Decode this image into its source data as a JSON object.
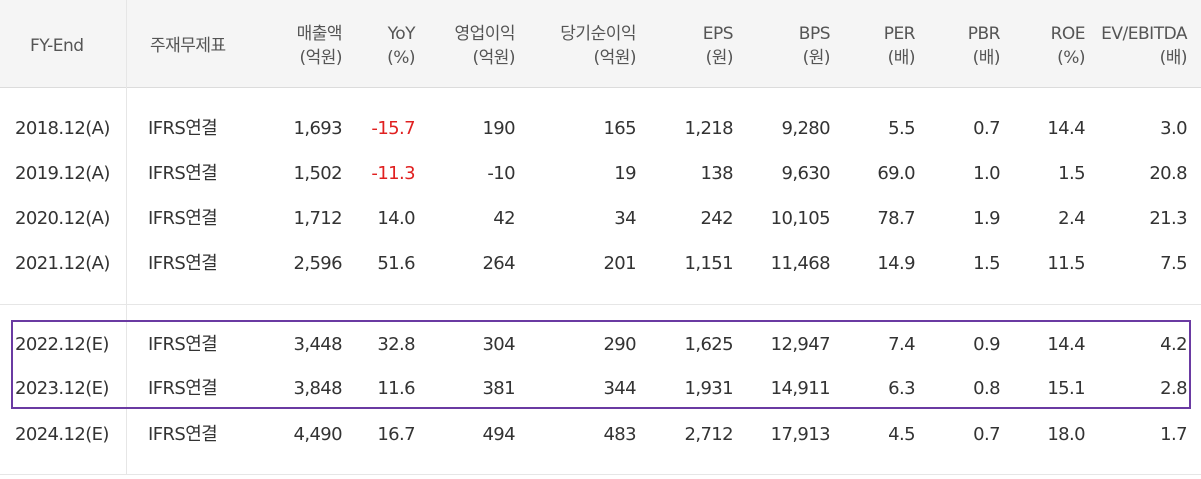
{
  "headers": [
    {
      "label": "FY-End",
      "sub": ""
    },
    {
      "label": "주재무제표",
      "sub": ""
    },
    {
      "label": "매출액",
      "sub": "(억원)"
    },
    {
      "label": "YoY",
      "sub": "(%)"
    },
    {
      "label": "영업이익",
      "sub": "(억원)"
    },
    {
      "label": "당기순이익",
      "sub": "(억원)"
    },
    {
      "label": "EPS",
      "sub": "(원)"
    },
    {
      "label": "BPS",
      "sub": "(원)"
    },
    {
      "label": "PER",
      "sub": "(배)"
    },
    {
      "label": "PBR",
      "sub": "(배)"
    },
    {
      "label": "ROE",
      "sub": "(%)"
    },
    {
      "label": "EV/EBITDA",
      "sub": "(배)"
    }
  ],
  "rows": [
    [
      "2018.12(A)",
      "IFRS연결",
      "1,693",
      "-15.7",
      "190",
      "165",
      "1,218",
      "9,280",
      "5.5",
      "0.7",
      "14.4",
      "3.0"
    ],
    [
      "2019.12(A)",
      "IFRS연결",
      "1,502",
      "-11.3",
      "-10",
      "19",
      "138",
      "9,630",
      "69.0",
      "1.0",
      "1.5",
      "20.8"
    ],
    [
      "2020.12(A)",
      "IFRS연결",
      "1,712",
      "14.0",
      "42",
      "34",
      "242",
      "10,105",
      "78.7",
      "1.9",
      "2.4",
      "21.3"
    ],
    [
      "2021.12(A)",
      "IFRS연결",
      "2,596",
      "51.6",
      "264",
      "201",
      "1,151",
      "11,468",
      "14.9",
      "1.5",
      "11.5",
      "7.5"
    ],
    [
      "2022.12(E)",
      "IFRS연결",
      "3,448",
      "32.8",
      "304",
      "290",
      "1,625",
      "12,947",
      "7.4",
      "0.9",
      "14.4",
      "4.2"
    ],
    [
      "2023.12(E)",
      "IFRS연결",
      "3,848",
      "11.6",
      "381",
      "344",
      "1,931",
      "14,911",
      "6.3",
      "0.8",
      "15.1",
      "2.8"
    ],
    [
      "2024.12(E)",
      "IFRS연결",
      "4,490",
      "16.7",
      "494",
      "483",
      "2,712",
      "17,913",
      "4.5",
      "0.7",
      "18.0",
      "1.7"
    ]
  ],
  "highlighted_rows": [
    "2022.12(E)",
    "2023.12(E)"
  ],
  "colors": {
    "negative": "#e02020",
    "highlight_border": "#6a3aa2",
    "header_bg": "#f5f5f5"
  }
}
